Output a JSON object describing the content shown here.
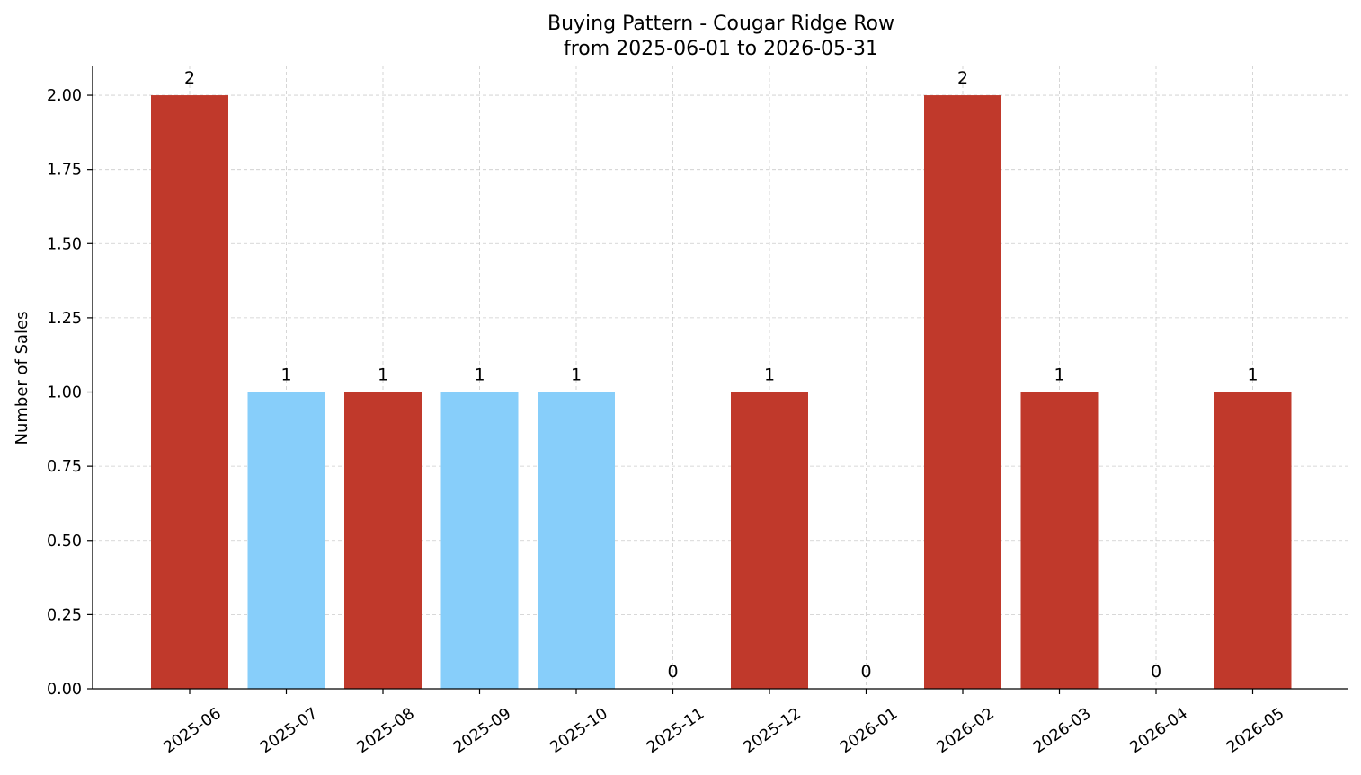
{
  "chart_data": {
    "type": "bar",
    "title": "Buying Pattern - Cougar Ridge Row",
    "subtitle": "from 2025-06-01 to 2026-05-31",
    "xlabel": "",
    "ylabel": "Number of Sales",
    "categories": [
      "2025-06",
      "2025-07",
      "2025-08",
      "2025-09",
      "2025-10",
      "2025-11",
      "2025-12",
      "2026-01",
      "2026-02",
      "2026-03",
      "2026-04",
      "2026-05"
    ],
    "values": [
      2,
      1,
      1,
      1,
      1,
      0,
      1,
      0,
      2,
      1,
      0,
      1
    ],
    "bar_colors": [
      "#c0392b",
      "#87cefa",
      "#c0392b",
      "#87cefa",
      "#87cefa",
      "#c0392b",
      "#c0392b",
      "#c0392b",
      "#c0392b",
      "#c0392b",
      "#c0392b",
      "#c0392b"
    ],
    "ylim": [
      0,
      2.1
    ],
    "yticks": [
      0,
      0.25,
      0.5,
      0.75,
      1.0,
      1.25,
      1.5,
      1.75,
      2.0
    ],
    "ytick_labels": [
      "0.00",
      "0.25",
      "0.50",
      "0.75",
      "1.00",
      "1.25",
      "1.50",
      "1.75",
      "2.00"
    ],
    "data_labels": [
      "2",
      "1",
      "1",
      "1",
      "1",
      "0",
      "1",
      "0",
      "2",
      "1",
      "0",
      "1"
    ],
    "grid": true,
    "legend": "none"
  }
}
